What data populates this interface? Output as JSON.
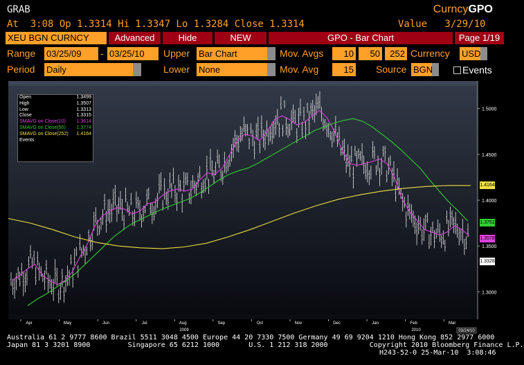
{
  "header": {
    "ticker": "GRAB",
    "brand_prefix": "Curncy",
    "brand_suffix": "GPO",
    "quote_line": "At  3:08 Op 1.3314 Hi 1.3347 Lo 1.3284 Close 1.3314",
    "value_line": "Value   3/29/10"
  },
  "toolbar": {
    "security": "XEU BGN CURNCY",
    "advanced": "Advanced",
    "hide": "Hide",
    "new": "NEW",
    "title": "GPO - Bar Chart",
    "page": "Page 1/19"
  },
  "controls": {
    "range_label": "Range",
    "range_start": "03/25/09",
    "range_dash": "-",
    "range_end": "03/25/10",
    "upper_label": "Upper",
    "upper_value": "Bar Chart",
    "movavgs_label": "Mov. Avgs",
    "ma1": "10",
    "ma2": "50",
    "ma3": "252",
    "currency_label": "Currency",
    "currency_value": "USD",
    "period_label": "Period",
    "period_value": "Daily",
    "lower_label": "Lower",
    "lower_value": "None",
    "movavg_label": "Mov. Avg",
    "movavg_value": "15",
    "source_label": "Source",
    "source_value": "BGN",
    "events_label": "Events"
  },
  "legend": [
    {
      "label": "Open",
      "value": "1.3499",
      "color": "#ffffff"
    },
    {
      "label": "High",
      "value": "1.3507",
      "color": "#ffffff"
    },
    {
      "label": "Low",
      "value": "1.3313",
      "color": "#ffffff"
    },
    {
      "label": "Close",
      "value": "1.3315",
      "color": "#ffffff"
    },
    {
      "label": "SMAVG on Close(10)",
      "value": "1.3614",
      "color": "#e040e0"
    },
    {
      "label": "SMAVG on Close(50)",
      "value": "1.3774",
      "color": "#30d030"
    },
    {
      "label": "SMAVG on Close(252)",
      "value": "1.4164",
      "color": "#f0e040"
    },
    {
      "label": "Events",
      "value": "",
      "color": "#ffffff"
    }
  ],
  "chart_data": {
    "type": "line",
    "x_ticks": [
      "Apr",
      "May",
      "Jun",
      "Jul",
      "Aug",
      "Sep",
      "Oct",
      "Nov",
      "Dec",
      "Jan",
      "Feb",
      "Mar"
    ],
    "year_labels": [
      "2009",
      "2010"
    ],
    "y_ticks": [
      "1.5000",
      "1.4500",
      "1.4000",
      "1.3500",
      "1.3000"
    ],
    "ylim": [
      1.27,
      1.53
    ],
    "date_stamp": "03/24/10",
    "series": [
      {
        "name": "SMAVG on Close(10)",
        "color": "#e040e0",
        "values": [
          1.312,
          1.318,
          1.325,
          1.33,
          1.318,
          1.312,
          1.308,
          1.312,
          1.322,
          1.338,
          1.352,
          1.372,
          1.383,
          1.388,
          1.392,
          1.39,
          1.385,
          1.388,
          1.396,
          1.398,
          1.405,
          1.41,
          1.412,
          1.41,
          1.412,
          1.422,
          1.43,
          1.428,
          1.435,
          1.45,
          1.465,
          1.472,
          1.47,
          1.465,
          1.475,
          1.488,
          1.492,
          1.488,
          1.482,
          1.485,
          1.492,
          1.498,
          1.49,
          1.475,
          1.455,
          1.44,
          1.438,
          1.44,
          1.442,
          1.445,
          1.44,
          1.425,
          1.402,
          1.388,
          1.378,
          1.368,
          1.365,
          1.362,
          1.365,
          1.372,
          1.368,
          1.361
        ]
      },
      {
        "name": "SMAVG on Close(50)",
        "color": "#30d030",
        "values": [
          1.285,
          1.292,
          1.298,
          1.305,
          1.312,
          1.32,
          1.33,
          1.34,
          1.35,
          1.36,
          1.368,
          1.375,
          1.38,
          1.385,
          1.39,
          1.394,
          1.398,
          1.402,
          1.408,
          1.415,
          1.422,
          1.428,
          1.432,
          1.435,
          1.44,
          1.446,
          1.452,
          1.458,
          1.464,
          1.47,
          1.476,
          1.48,
          1.484,
          1.487,
          1.489,
          1.486,
          1.48,
          1.472,
          1.464,
          1.455,
          1.445,
          1.435,
          1.422,
          1.41,
          1.398,
          1.388,
          1.377
        ]
      },
      {
        "name": "SMAVG on Close(252)",
        "color": "#f0e040",
        "values": [
          1.38,
          1.375,
          1.368,
          1.36,
          1.354,
          1.35,
          1.348,
          1.347,
          1.349,
          1.353,
          1.36,
          1.368,
          1.377,
          1.386,
          1.394,
          1.401,
          1.406,
          1.41,
          1.413,
          1.415,
          1.416,
          1.416
        ]
      }
    ],
    "price_labels": [
      {
        "value": "1.4164",
        "color": "#f0e040"
      },
      {
        "value": "1.3751",
        "color": "#30d030"
      },
      {
        "value": "1.3578",
        "color": "#e040e0"
      },
      {
        "value": "1.3328",
        "color": "#ffffff"
      }
    ]
  },
  "footer": {
    "line1": "Australia 61 2 9777 8600 Brazil 5511 3048 4500 Europe 44 20 7330 7500 Germany 49 69 9204 1210 Hong Kong 852 2977 6000",
    "line2": "Japan 81 3 3201 8900         Singapore 65 6212 1000       U.S. 1 212 318 2000          Copyright 2010 Bloomberg Finance L.P.",
    "line3": "H243-52-0 25-Mar-10  3:08:46"
  }
}
